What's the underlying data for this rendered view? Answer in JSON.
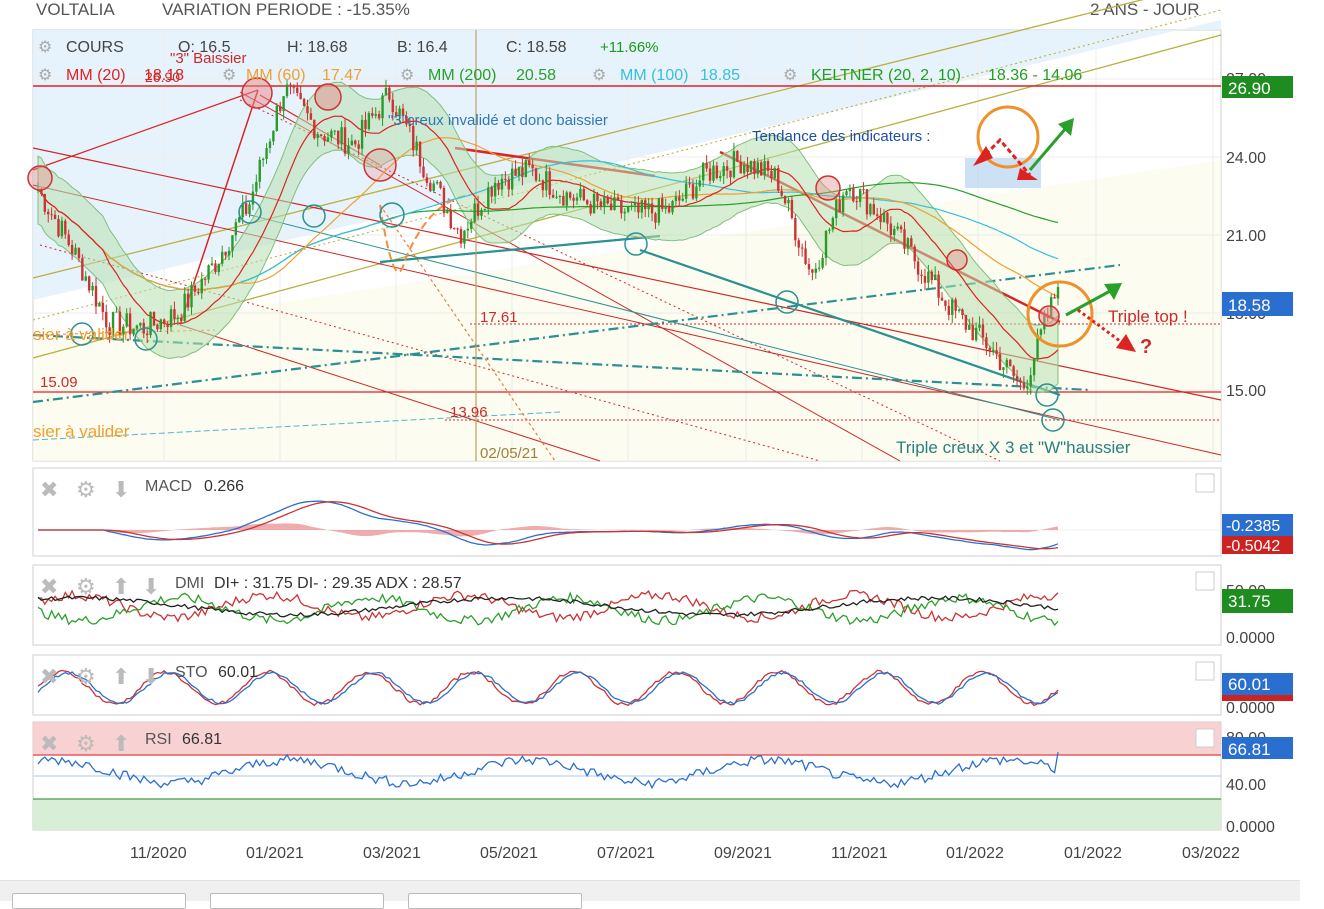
{
  "header": {
    "symbol": "VOLTALIA",
    "variation": "VARIATION PERIODE : -15.35%",
    "period": "2 ANS - JOUR"
  },
  "main": {
    "ohlc": {
      "cours": "COURS",
      "o": "O: 16.5",
      "h": "H: 18.68",
      "b": "B: 16.4",
      "c": "C: 18.58",
      "change": "+11.66%"
    },
    "indicators": [
      {
        "label": "MM (20)",
        "value": "18.18",
        "color": "#e02020"
      },
      {
        "label": "MM (60)",
        "value": "17.47",
        "color": "#f0a030"
      },
      {
        "label": "MM (200)",
        "value": "20.58",
        "color": "#28a028"
      },
      {
        "label": "MM (100)",
        "value": "18.85",
        "color": "#38c0d8"
      },
      {
        "label": "KELTNER (20, 2, 10)",
        "value": "18.36 - 14.06",
        "color": "#20a020"
      }
    ],
    "price_axis": [
      "27.00",
      "24.00",
      "21.00",
      "18.00",
      "15.00"
    ],
    "badges": {
      "top": "26.90",
      "last": "18.58"
    },
    "annotations": {
      "baissier3": "\"3\" Baissier",
      "creux_invalide": "\"3\"creux invalidé et donc baissier",
      "tendance": "Tendance des indicateurs :",
      "triple_top": "Triple top !",
      "question": "?",
      "triple_creux": "Triple creux X 3 et \"W\"haussier",
      "lvl_2690": "26.90",
      "lvl_1761": "17.61",
      "lvl_1509": "15.09",
      "lvl_1396": "13.96",
      "date_marker": "02/05/21",
      "a_valider_1": "sier à valider",
      "a_valider_2": "sier à valider"
    }
  },
  "panels": {
    "macd": {
      "label": "MACD",
      "value": "0.266",
      "badge1": "-0.2385",
      "badge2": "-0.5042"
    },
    "dmi": {
      "label": "DMI",
      "value": "DI+ : 31.75 DI- : 29.35 ADX : 28.57",
      "axis_top": "50.00",
      "badge": "31.75",
      "axis_bottom": "0.0000"
    },
    "sto": {
      "label": "STO",
      "value": "60.01",
      "badge": "60.01",
      "axis_bottom": "0.0000"
    },
    "rsi": {
      "label": "RSI",
      "value": "66.81",
      "axis_top": "80.00",
      "badge": "66.81",
      "axis_mid": "40.00",
      "axis_bottom": "0.0000"
    }
  },
  "x_axis": [
    "11/2020",
    "01/2021",
    "03/2021",
    "05/2021",
    "07/2021",
    "09/2021",
    "11/2021",
    "01/2022",
    "01/2022",
    "03/2022"
  ],
  "chart_data": {
    "type": "line",
    "series": [
      {
        "name": "COURS",
        "values": [
          22.6,
          20.1,
          17.1,
          16.9,
          17.5,
          19.5,
          22.0,
          26.8,
          25.0,
          24.5,
          26.6,
          23.5,
          20.8,
          23.0,
          23.4,
          22.4,
          21.9,
          21.6,
          21.8,
          23.3,
          23.8,
          23.1,
          19.1,
          22.9,
          21.5,
          19.6,
          17.6,
          16.2,
          14.4,
          18.58
        ]
      }
    ],
    "ylim": [
      11.4,
      29.2
    ],
    "levels": [
      26.9,
      17.61,
      15.09,
      13.96
    ],
    "last_close": 18.58,
    "grid": true
  }
}
